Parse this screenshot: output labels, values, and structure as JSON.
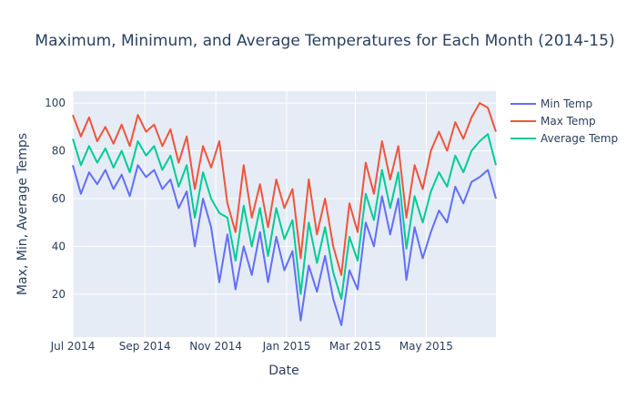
{
  "chart_data": {
    "type": "line",
    "title": "Maximum, Minimum, and Average Temperatures for Each Month (2014-15)",
    "xlabel": "Date",
    "ylabel": "Max, Min, Average Temps",
    "x_range": [
      "2014-07-01",
      "2015-06-30"
    ],
    "x_tick_labels": [
      "Jul 2014",
      "Sep 2014",
      "Nov 2014",
      "Jan 2015",
      "Mar 2015",
      "May 2015"
    ],
    "x_tick_dates": [
      "2014-07-01",
      "2014-09-01",
      "2014-11-01",
      "2015-01-01",
      "2015-03-01",
      "2015-05-01"
    ],
    "ylim": [
      2,
      105
    ],
    "y_ticks": [
      20,
      40,
      60,
      80,
      100
    ],
    "grid": true,
    "legend_position": "top-right",
    "background": "#e5ecf6",
    "series": [
      {
        "name": "Min Temp",
        "color": "#636efa",
        "points": [
          [
            "2014-07-01",
            74
          ],
          [
            "2014-07-08",
            62
          ],
          [
            "2014-07-15",
            71
          ],
          [
            "2014-07-22",
            66
          ],
          [
            "2014-07-29",
            72
          ],
          [
            "2014-08-05",
            64
          ],
          [
            "2014-08-12",
            70
          ],
          [
            "2014-08-19",
            61
          ],
          [
            "2014-08-26",
            74
          ],
          [
            "2014-09-02",
            69
          ],
          [
            "2014-09-09",
            72
          ],
          [
            "2014-09-16",
            64
          ],
          [
            "2014-09-23",
            68
          ],
          [
            "2014-09-30",
            56
          ],
          [
            "2014-10-07",
            63
          ],
          [
            "2014-10-14",
            40
          ],
          [
            "2014-10-21",
            60
          ],
          [
            "2014-10-28",
            48
          ],
          [
            "2014-11-04",
            25
          ],
          [
            "2014-11-11",
            45
          ],
          [
            "2014-11-18",
            22
          ],
          [
            "2014-11-25",
            40
          ],
          [
            "2014-12-02",
            28
          ],
          [
            "2014-12-09",
            46
          ],
          [
            "2014-12-16",
            25
          ],
          [
            "2014-12-23",
            44
          ],
          [
            "2014-12-30",
            30
          ],
          [
            "2015-01-06",
            38
          ],
          [
            "2015-01-13",
            9
          ],
          [
            "2015-01-20",
            32
          ],
          [
            "2015-01-27",
            21
          ],
          [
            "2015-02-03",
            36
          ],
          [
            "2015-02-10",
            18
          ],
          [
            "2015-02-17",
            7
          ],
          [
            "2015-02-24",
            30
          ],
          [
            "2015-03-03",
            22
          ],
          [
            "2015-03-10",
            50
          ],
          [
            "2015-03-17",
            40
          ],
          [
            "2015-03-24",
            61
          ],
          [
            "2015-03-31",
            45
          ],
          [
            "2015-04-07",
            60
          ],
          [
            "2015-04-14",
            26
          ],
          [
            "2015-04-21",
            48
          ],
          [
            "2015-04-28",
            35
          ],
          [
            "2015-05-05",
            46
          ],
          [
            "2015-05-12",
            55
          ],
          [
            "2015-05-19",
            50
          ],
          [
            "2015-05-26",
            65
          ],
          [
            "2015-06-02",
            58
          ],
          [
            "2015-06-09",
            67
          ],
          [
            "2015-06-16",
            69
          ],
          [
            "2015-06-23",
            72
          ],
          [
            "2015-06-30",
            60
          ]
        ]
      },
      {
        "name": "Max Temp",
        "color": "#ef553b",
        "points": [
          [
            "2014-07-01",
            95
          ],
          [
            "2014-07-08",
            86
          ],
          [
            "2014-07-15",
            94
          ],
          [
            "2014-07-22",
            84
          ],
          [
            "2014-07-29",
            90
          ],
          [
            "2014-08-05",
            83
          ],
          [
            "2014-08-12",
            91
          ],
          [
            "2014-08-19",
            82
          ],
          [
            "2014-08-26",
            95
          ],
          [
            "2014-09-02",
            88
          ],
          [
            "2014-09-09",
            91
          ],
          [
            "2014-09-16",
            82
          ],
          [
            "2014-09-23",
            89
          ],
          [
            "2014-09-30",
            75
          ],
          [
            "2014-10-07",
            86
          ],
          [
            "2014-10-14",
            64
          ],
          [
            "2014-10-21",
            82
          ],
          [
            "2014-10-28",
            73
          ],
          [
            "2014-11-04",
            84
          ],
          [
            "2014-11-11",
            58
          ],
          [
            "2014-11-18",
            46
          ],
          [
            "2014-11-25",
            74
          ],
          [
            "2014-12-02",
            52
          ],
          [
            "2014-12-09",
            66
          ],
          [
            "2014-12-16",
            48
          ],
          [
            "2014-12-23",
            68
          ],
          [
            "2014-12-30",
            56
          ],
          [
            "2015-01-06",
            64
          ],
          [
            "2015-01-13",
            35
          ],
          [
            "2015-01-20",
            68
          ],
          [
            "2015-01-27",
            45
          ],
          [
            "2015-02-03",
            60
          ],
          [
            "2015-02-10",
            40
          ],
          [
            "2015-02-17",
            28
          ],
          [
            "2015-02-24",
            58
          ],
          [
            "2015-03-03",
            46
          ],
          [
            "2015-03-10",
            75
          ],
          [
            "2015-03-17",
            62
          ],
          [
            "2015-03-24",
            84
          ],
          [
            "2015-03-31",
            68
          ],
          [
            "2015-04-07",
            82
          ],
          [
            "2015-04-14",
            52
          ],
          [
            "2015-04-21",
            74
          ],
          [
            "2015-04-28",
            64
          ],
          [
            "2015-05-05",
            80
          ],
          [
            "2015-05-12",
            88
          ],
          [
            "2015-05-19",
            80
          ],
          [
            "2015-05-26",
            92
          ],
          [
            "2015-06-02",
            85
          ],
          [
            "2015-06-09",
            94
          ],
          [
            "2015-06-16",
            100
          ],
          [
            "2015-06-23",
            98
          ],
          [
            "2015-06-30",
            88
          ]
        ]
      },
      {
        "name": "Average Temp",
        "color": "#00cc96",
        "points": [
          [
            "2014-07-01",
            85
          ],
          [
            "2014-07-08",
            74
          ],
          [
            "2014-07-15",
            82
          ],
          [
            "2014-07-22",
            75
          ],
          [
            "2014-07-29",
            81
          ],
          [
            "2014-08-05",
            73
          ],
          [
            "2014-08-12",
            80
          ],
          [
            "2014-08-19",
            71
          ],
          [
            "2014-08-26",
            84
          ],
          [
            "2014-09-02",
            78
          ],
          [
            "2014-09-09",
            82
          ],
          [
            "2014-09-16",
            72
          ],
          [
            "2014-09-23",
            78
          ],
          [
            "2014-09-30",
            65
          ],
          [
            "2014-10-07",
            74
          ],
          [
            "2014-10-14",
            52
          ],
          [
            "2014-10-21",
            71
          ],
          [
            "2014-10-28",
            60
          ],
          [
            "2014-11-04",
            54
          ],
          [
            "2014-11-11",
            52
          ],
          [
            "2014-11-18",
            34
          ],
          [
            "2014-11-25",
            57
          ],
          [
            "2014-12-02",
            40
          ],
          [
            "2014-12-09",
            56
          ],
          [
            "2014-12-16",
            36
          ],
          [
            "2014-12-23",
            56
          ],
          [
            "2014-12-30",
            43
          ],
          [
            "2015-01-06",
            51
          ],
          [
            "2015-01-13",
            20
          ],
          [
            "2015-01-20",
            50
          ],
          [
            "2015-01-27",
            33
          ],
          [
            "2015-02-03",
            48
          ],
          [
            "2015-02-10",
            29
          ],
          [
            "2015-02-17",
            18
          ],
          [
            "2015-02-24",
            44
          ],
          [
            "2015-03-03",
            34
          ],
          [
            "2015-03-10",
            62
          ],
          [
            "2015-03-17",
            51
          ],
          [
            "2015-03-24",
            72
          ],
          [
            "2015-03-31",
            56
          ],
          [
            "2015-04-07",
            71
          ],
          [
            "2015-04-14",
            39
          ],
          [
            "2015-04-21",
            61
          ],
          [
            "2015-04-28",
            50
          ],
          [
            "2015-05-05",
            63
          ],
          [
            "2015-05-12",
            71
          ],
          [
            "2015-05-19",
            65
          ],
          [
            "2015-05-26",
            78
          ],
          [
            "2015-06-02",
            71
          ],
          [
            "2015-06-09",
            80
          ],
          [
            "2015-06-16",
            84
          ],
          [
            "2015-06-23",
            87
          ],
          [
            "2015-06-30",
            74
          ]
        ]
      }
    ]
  }
}
